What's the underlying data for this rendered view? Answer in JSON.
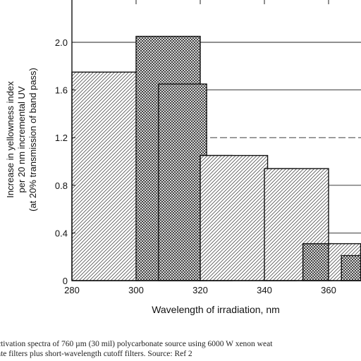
{
  "chart_data": {
    "type": "bar",
    "title": "",
    "xlabel": "Wavelength of irradiation, nm",
    "ylabel_lines": [
      "Increase in yellowness index",
      "per 20 nm incremental UV",
      "(at 20% transmission of band pass)"
    ],
    "xlim": [
      280,
      368
    ],
    "ylim": [
      0,
      2.4
    ],
    "xticks": [
      280,
      300,
      320,
      340,
      360
    ],
    "xtick_labels": [
      "280",
      "300",
      "320",
      "340",
      "360"
    ],
    "yticks": [
      0,
      0.4,
      0.8,
      1.2,
      1.6,
      2.0
    ],
    "ytick_labels": [
      "0",
      "0.4",
      "0.8",
      "1.2",
      "1.6",
      "2.0"
    ],
    "grid": "horizontal",
    "series": [
      {
        "pattern": "diagonal-hatch",
        "x0": 280,
        "x1": 301,
        "value": 1.75
      },
      {
        "pattern": "cross-hatch",
        "x0": 300,
        "x1": 320,
        "value": 2.05
      },
      {
        "pattern": "cross-hatch",
        "x0": 307,
        "x1": 322,
        "value": 1.65
      },
      {
        "pattern": "cross-hatch",
        "x0": 320,
        "x1": 330,
        "value": 1.05
      },
      {
        "pattern": "diagonal-hatch",
        "x0": 320,
        "x1": 341,
        "value": 1.05
      },
      {
        "pattern": "cross-hatch",
        "x0": 341,
        "x1": 350,
        "value": 0.94
      },
      {
        "pattern": "diagonal-hatch",
        "x0": 340,
        "x1": 360,
        "value": 0.94
      },
      {
        "pattern": "cross-hatch",
        "x0": 352,
        "x1": 361,
        "value": 0.31
      },
      {
        "pattern": "diagonal-hatch",
        "x0": 360,
        "x1": 370,
        "value": 0.31
      },
      {
        "pattern": "cross-hatch",
        "x0": 364,
        "x1": 370,
        "value": 0.21
      }
    ],
    "reference_lines": [
      2.0,
      1.6,
      1.2,
      0.8,
      0.4
    ]
  },
  "caption": {
    "line1": "ctivation spectra of 760 µm (30 mil) polycarbonate source using 6000 W xenon weat",
    "line2": "ate filters plus short-wavelength cutoff filters. Source: Ref 2"
  }
}
